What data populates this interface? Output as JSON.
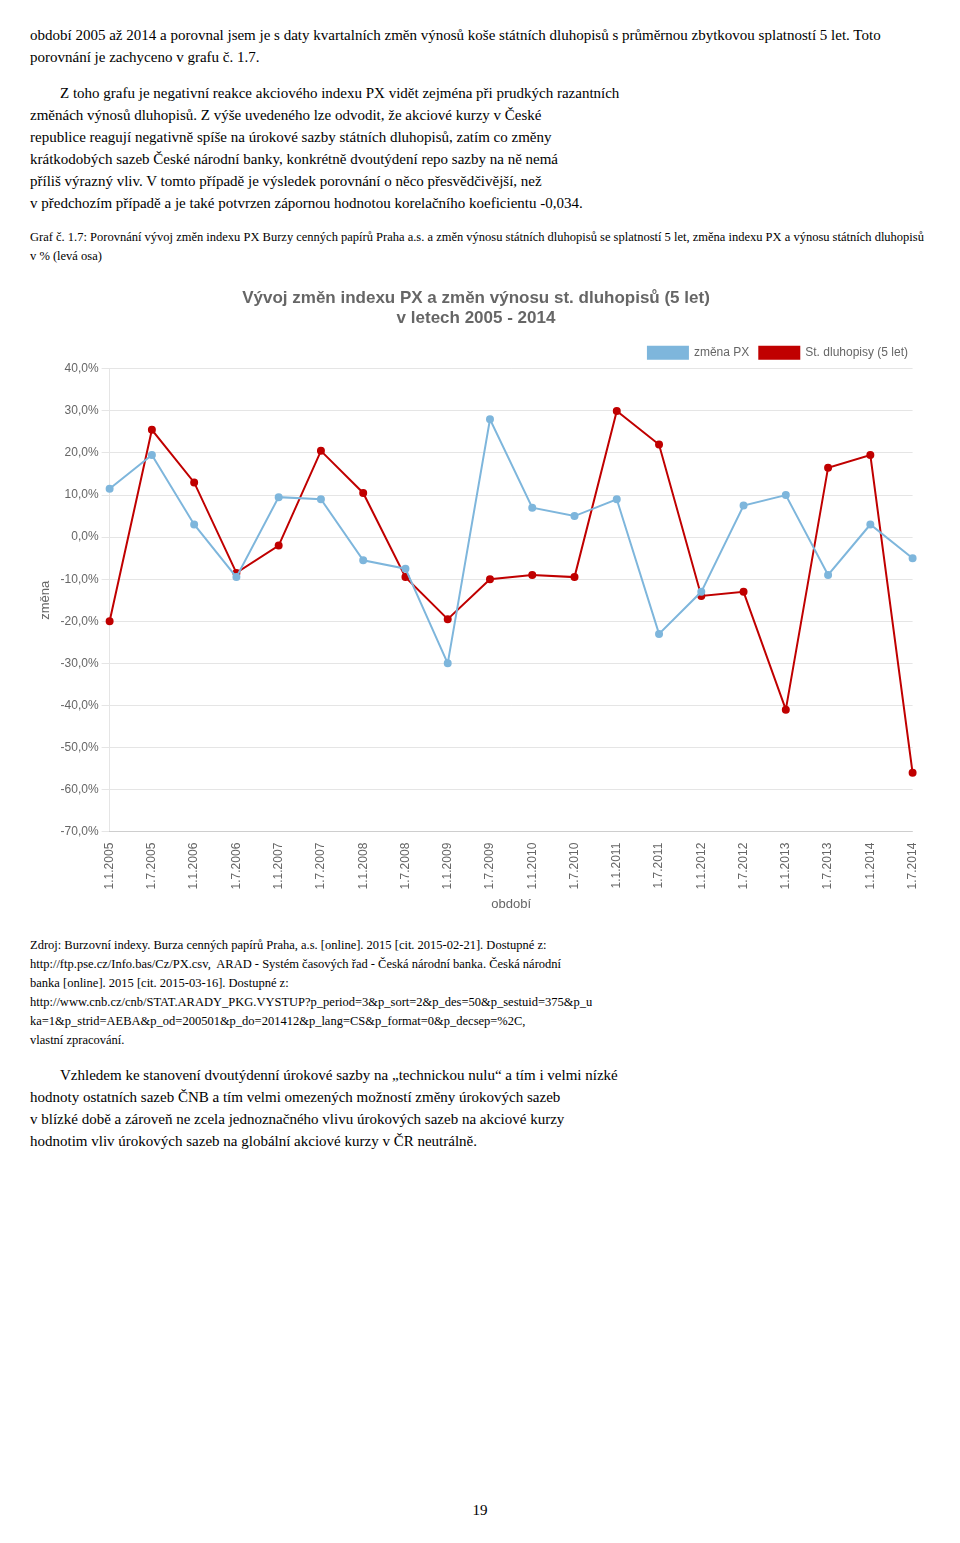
{
  "chart_data": {
    "type": "line",
    "title": "Vývoj změn indexu PX a změn výnosu st. dluhopisů (5 let)\nv letech 2005 - 2014",
    "x_label": "období",
    "y_label": "změna",
    "categories": [
      "1.1.2005",
      "1.7.2005",
      "1.1.2006",
      "1.7.2006",
      "1.1.2007",
      "1.7.2007",
      "1.1.2008",
      "1.7.2008",
      "1.1.2009",
      "1.7.2009",
      "1.1.2010",
      "1.7.2010",
      "1.1.2011",
      "1.7.2011",
      "1.1.2012",
      "1.7.2012",
      "1.1.2013",
      "1.7.2013",
      "1.1.2014",
      "1.7.2014"
    ],
    "series": [
      {
        "name": "změna PX",
        "color": "#7EB6DC",
        "marker": "circle",
        "values": [
          11.5,
          19.5,
          3.0,
          -9.5,
          9.5,
          9.0,
          -5.5,
          -7.5,
          -30.0,
          28.0,
          7.0,
          5.0,
          9.0,
          -23.0,
          -13.0,
          7.5,
          10.0,
          -9.0,
          3.0,
          -5.0
        ]
      },
      {
        "name": "St. dluhopisy (5 let)",
        "color": "#C00000",
        "marker": "circle",
        "values": [
          -20.0,
          25.5,
          13.0,
          -8.5,
          -2.0,
          20.5,
          10.5,
          -9.5,
          -19.5,
          -10.0,
          -9.0,
          -9.5,
          30.0,
          22.0,
          -14.0,
          -13.0,
          -41.0,
          16.5,
          19.5,
          -56.0
        ]
      }
    ],
    "ylim": [
      -70,
      40
    ],
    "yticks": [
      {
        "value": -70,
        "label": "-70,0%"
      },
      {
        "value": -60,
        "label": "-60,0%"
      },
      {
        "value": -50,
        "label": "-50,0%"
      },
      {
        "value": -40,
        "label": "-40,0%"
      },
      {
        "value": -30,
        "label": "-30,0%"
      },
      {
        "value": -20,
        "label": "-20,0%"
      },
      {
        "value": -10,
        "label": "-10,0%"
      },
      {
        "value": 0,
        "label": "0,0%"
      },
      {
        "value": 10,
        "label": "10,0%"
      },
      {
        "value": 20,
        "label": "20,0%"
      },
      {
        "value": 30,
        "label": "30,0%"
      },
      {
        "value": 40,
        "label": "40,0%"
      }
    ],
    "grid": true,
    "legend": "upper right",
    "annotations": [
      [
        "období 2005 až 2014 a porovnal jsem je s daty kvartalních změn výnosů koše státních dluhopisů s průměrnou zbytkovou splatností 5 let. Toto porovnání je zachyceno v grafu č. 1.7."
      ],
      [
        "Z toho grafu je negativní reakce akciového indexu PX vidět zejména při prudkých razantních",
        "změnách výnosů dluhopisů. Z výše uvedeného lze odvodit, že akciové kurzy v České",
        "republice reagují negativně spíše na úrokové sazby státních dluhopisů, zatím co změny",
        "krátkodobých sazeb České národní banky, konkrétně dvoutýdení repo sazby na ně nemá",
        "příliš výrazný vliv. V tomto případě je výsledek porovnání o něco přesvědčivější, než",
        "v předchozím případě a je také potvrzen zápornou hodnotou korelačního koeficientu -0,034."
      ],
      [
        "Graf č. 1.7: Porovnání vývoj změn indexu PX Burzy cenných papírů Praha a.s. a změn výnosu státních dluhopisů se splatností 5 let, změna indexu PX a výnosu státních dluhopisů v % (levá osa)"
      ],
      [
        "Zdroj: Burzovní indexy. Burza cenných papírů Praha, a.s. [online]. 2015 [cit. 2015-02-21]. Dostupné z:",
        "http://ftp.pse.cz/Info.bas/Cz/PX.csv,  ARAD - Systém časových řad - Česká národní banka. Česká národní",
        "banka [online]. 2015 [cit. 2015-03-16]. Dostupné z:",
        "http://www.cnb.cz/cnb/STAT.ARADY_PKG.VYSTUP?p_period=3&p_sort=2&p_des=50&p_sestuid=375&p_u",
        "ka=1&p_strid=AEBA&p_od=200501&p_do=201412&p_lang=CS&p_format=0&p_decsep=%2C,",
        "vlastní zpracování."
      ],
      [
        "Vzhledem ke stanovení dvoutýdenní úrokové sazby na „technickou nulu“ a tím i velmi nízké",
        "hodnoty ostatních sazeb ČNB a tím velmi omezených možností změny úrokových sazeb",
        "v blízké době a zároveň ne zcela jednoznačného vlivu úrokových sazeb na akciové kurzy",
        "hodnotim vliv úrokových sazeb na globální akciové kurzy v ČR neutrálně."
      ],
      [
        "19"
      ]
    ]
  }
}
